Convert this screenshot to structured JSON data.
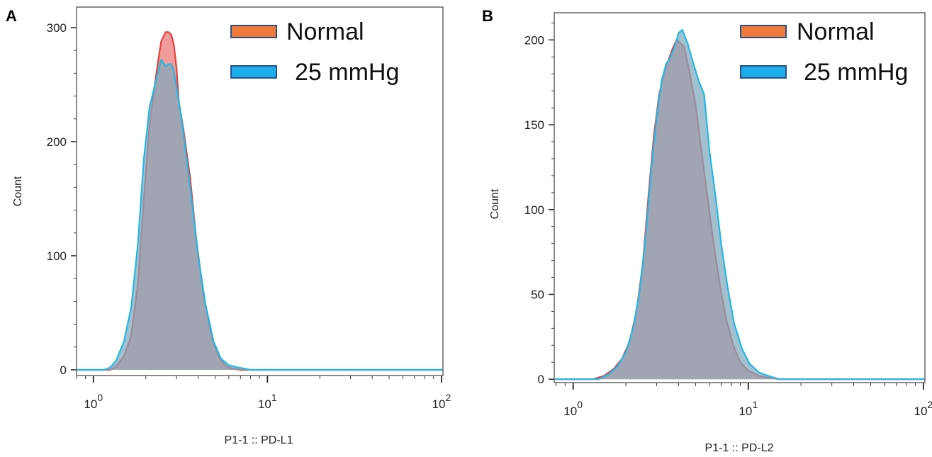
{
  "colors": {
    "normal_fill": "#f08a8a",
    "normal_line": "#e8403a",
    "mmhg_fill": "#7fa8bd",
    "mmhg_line": "#22b8e6",
    "legend_normal": "#f07a3a",
    "legend_mmhg": "#1aaeea",
    "legend_border": "#2a4f8a"
  },
  "chart_data": [
    {
      "panel": "A",
      "type": "area",
      "xlabel": "P1-1 :: PD-L1",
      "ylabel": "Count",
      "x_scale": "log",
      "xlim": [
        0.8,
        102
      ],
      "ylim": [
        -5,
        318
      ],
      "yticks": [
        0,
        100,
        200,
        300
      ],
      "xticks": [
        {
          "value": 1,
          "base": "10",
          "exp": "0"
        },
        {
          "value": 10,
          "base": "10",
          "exp": "1"
        },
        {
          "value": 100,
          "base": "10",
          "exp": "2"
        }
      ],
      "legend": {
        "placement": "top-right",
        "entries": [
          "Normal",
          "25 mmHg"
        ]
      },
      "series": [
        {
          "name": "Normal",
          "x": [
            0.8,
            1.25,
            1.35,
            1.5,
            1.65,
            1.8,
            1.95,
            2.1,
            2.3,
            2.45,
            2.6,
            2.7,
            2.8,
            2.9,
            3.0,
            3.1,
            3.3,
            3.6,
            3.9,
            4.3,
            4.8,
            5.3,
            5.8,
            6.3,
            7.0,
            102
          ],
          "y": [
            0,
            0,
            3,
            12,
            30,
            75,
            150,
            215,
            260,
            288,
            296,
            296,
            294,
            285,
            265,
            235,
            210,
            168,
            115,
            65,
            28,
            10,
            3,
            1,
            0,
            0
          ]
        },
        {
          "name": "25 mmHg",
          "x": [
            0.8,
            1.15,
            1.25,
            1.35,
            1.5,
            1.65,
            1.8,
            1.95,
            2.1,
            2.3,
            2.45,
            2.6,
            2.7,
            2.8,
            2.9,
            3.0,
            3.2,
            3.4,
            3.7,
            4.0,
            4.4,
            4.9,
            5.4,
            6.0,
            6.8,
            8.0,
            102
          ],
          "y": [
            0,
            0,
            2,
            8,
            25,
            55,
            110,
            185,
            230,
            255,
            272,
            266,
            268,
            268,
            262,
            248,
            222,
            190,
            145,
            100,
            58,
            25,
            10,
            4,
            2,
            0,
            0
          ]
        }
      ]
    },
    {
      "panel": "B",
      "type": "area",
      "xlabel": "P1-1 :: PD-L2",
      "ylabel": "Count",
      "x_scale": "log",
      "xlim": [
        0.78,
        102
      ],
      "ylim": [
        -2,
        216
      ],
      "yticks": [
        0,
        50,
        100,
        150,
        200
      ],
      "xticks": [
        {
          "value": 1,
          "base": "10",
          "exp": "0"
        },
        {
          "value": 10,
          "base": "10",
          "exp": "1"
        },
        {
          "value": 100,
          "base": "10",
          "exp": "2"
        }
      ],
      "legend": {
        "placement": "top-right",
        "entries": [
          "Normal",
          "25 mmHg"
        ]
      },
      "series": [
        {
          "name": "Normal",
          "x": [
            0.78,
            1.3,
            1.5,
            1.7,
            1.9,
            2.1,
            2.3,
            2.5,
            2.7,
            2.9,
            3.1,
            3.3,
            3.5,
            3.7,
            3.9,
            4.1,
            4.3,
            4.6,
            5.0,
            5.4,
            5.8,
            6.3,
            6.9,
            7.5,
            8.2,
            9.0,
            10.0,
            11.5,
            13.0,
            15.0,
            102
          ],
          "y": [
            0,
            0,
            2,
            6,
            12,
            22,
            40,
            68,
            110,
            145,
            168,
            180,
            188,
            195,
            200,
            198,
            196,
            182,
            162,
            135,
            110,
            82,
            55,
            35,
            20,
            10,
            5,
            2,
            1,
            0,
            0
          ]
        },
        {
          "name": "25 mmHg",
          "x": [
            0.78,
            1.4,
            1.6,
            1.8,
            2.0,
            2.2,
            2.4,
            2.6,
            2.8,
            3.0,
            3.2,
            3.4,
            3.6,
            3.8,
            4.0,
            4.2,
            4.5,
            4.8,
            5.2,
            5.6,
            6.0,
            6.5,
            7.0,
            7.6,
            8.3,
            9.2,
            10.2,
            11.5,
            13.0,
            15.0,
            102
          ],
          "y": [
            0,
            0,
            3,
            8,
            16,
            30,
            52,
            85,
            125,
            155,
            176,
            186,
            190,
            196,
            204,
            206,
            198,
            188,
            176,
            168,
            135,
            108,
            80,
            55,
            33,
            18,
            9,
            4,
            2,
            0,
            0
          ]
        }
      ]
    }
  ]
}
